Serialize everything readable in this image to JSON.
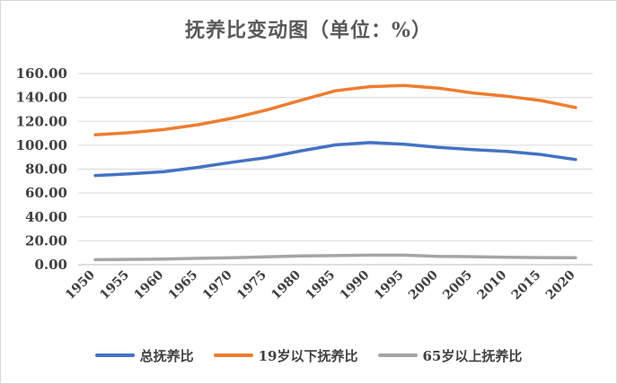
{
  "chart_data": {
    "type": "line",
    "title": "抚养比变动图（单位：%）",
    "xlabel": "",
    "ylabel": "",
    "categories": [
      "1950",
      "1955",
      "1960",
      "1965",
      "1970",
      "1975",
      "1980",
      "1985",
      "1990",
      "1995",
      "2000",
      "2005",
      "2010",
      "2015",
      "2020"
    ],
    "ylim": [
      0,
      160
    ],
    "yticks": [
      "0.00",
      "20.00",
      "40.00",
      "60.00",
      "80.00",
      "100.00",
      "120.00",
      "140.00",
      "160.00"
    ],
    "grid": true,
    "legend_position": "bottom",
    "series": [
      {
        "name": "总抚养比",
        "color": "#4472c4",
        "values": [
          74.7,
          76.0,
          77.8,
          81.5,
          85.8,
          89.7,
          95.3,
          100.3,
          102.2,
          100.8,
          98.2,
          96.4,
          94.8,
          92.2,
          88.0
        ]
      },
      {
        "name": "19岁以下抚养比",
        "color": "#ed7d31",
        "values": [
          108.8,
          110.5,
          113.1,
          117.2,
          122.7,
          129.5,
          137.7,
          145.6,
          149.0,
          150.0,
          147.8,
          143.8,
          141.0,
          137.4,
          131.5
        ]
      },
      {
        "name": "65岁以上抚养比",
        "color": "#a5a5a5",
        "values": [
          4.2,
          4.4,
          4.7,
          5.3,
          5.8,
          6.5,
          7.3,
          7.6,
          8.0,
          8.0,
          7.0,
          6.7,
          6.2,
          5.9,
          5.8
        ]
      }
    ]
  }
}
